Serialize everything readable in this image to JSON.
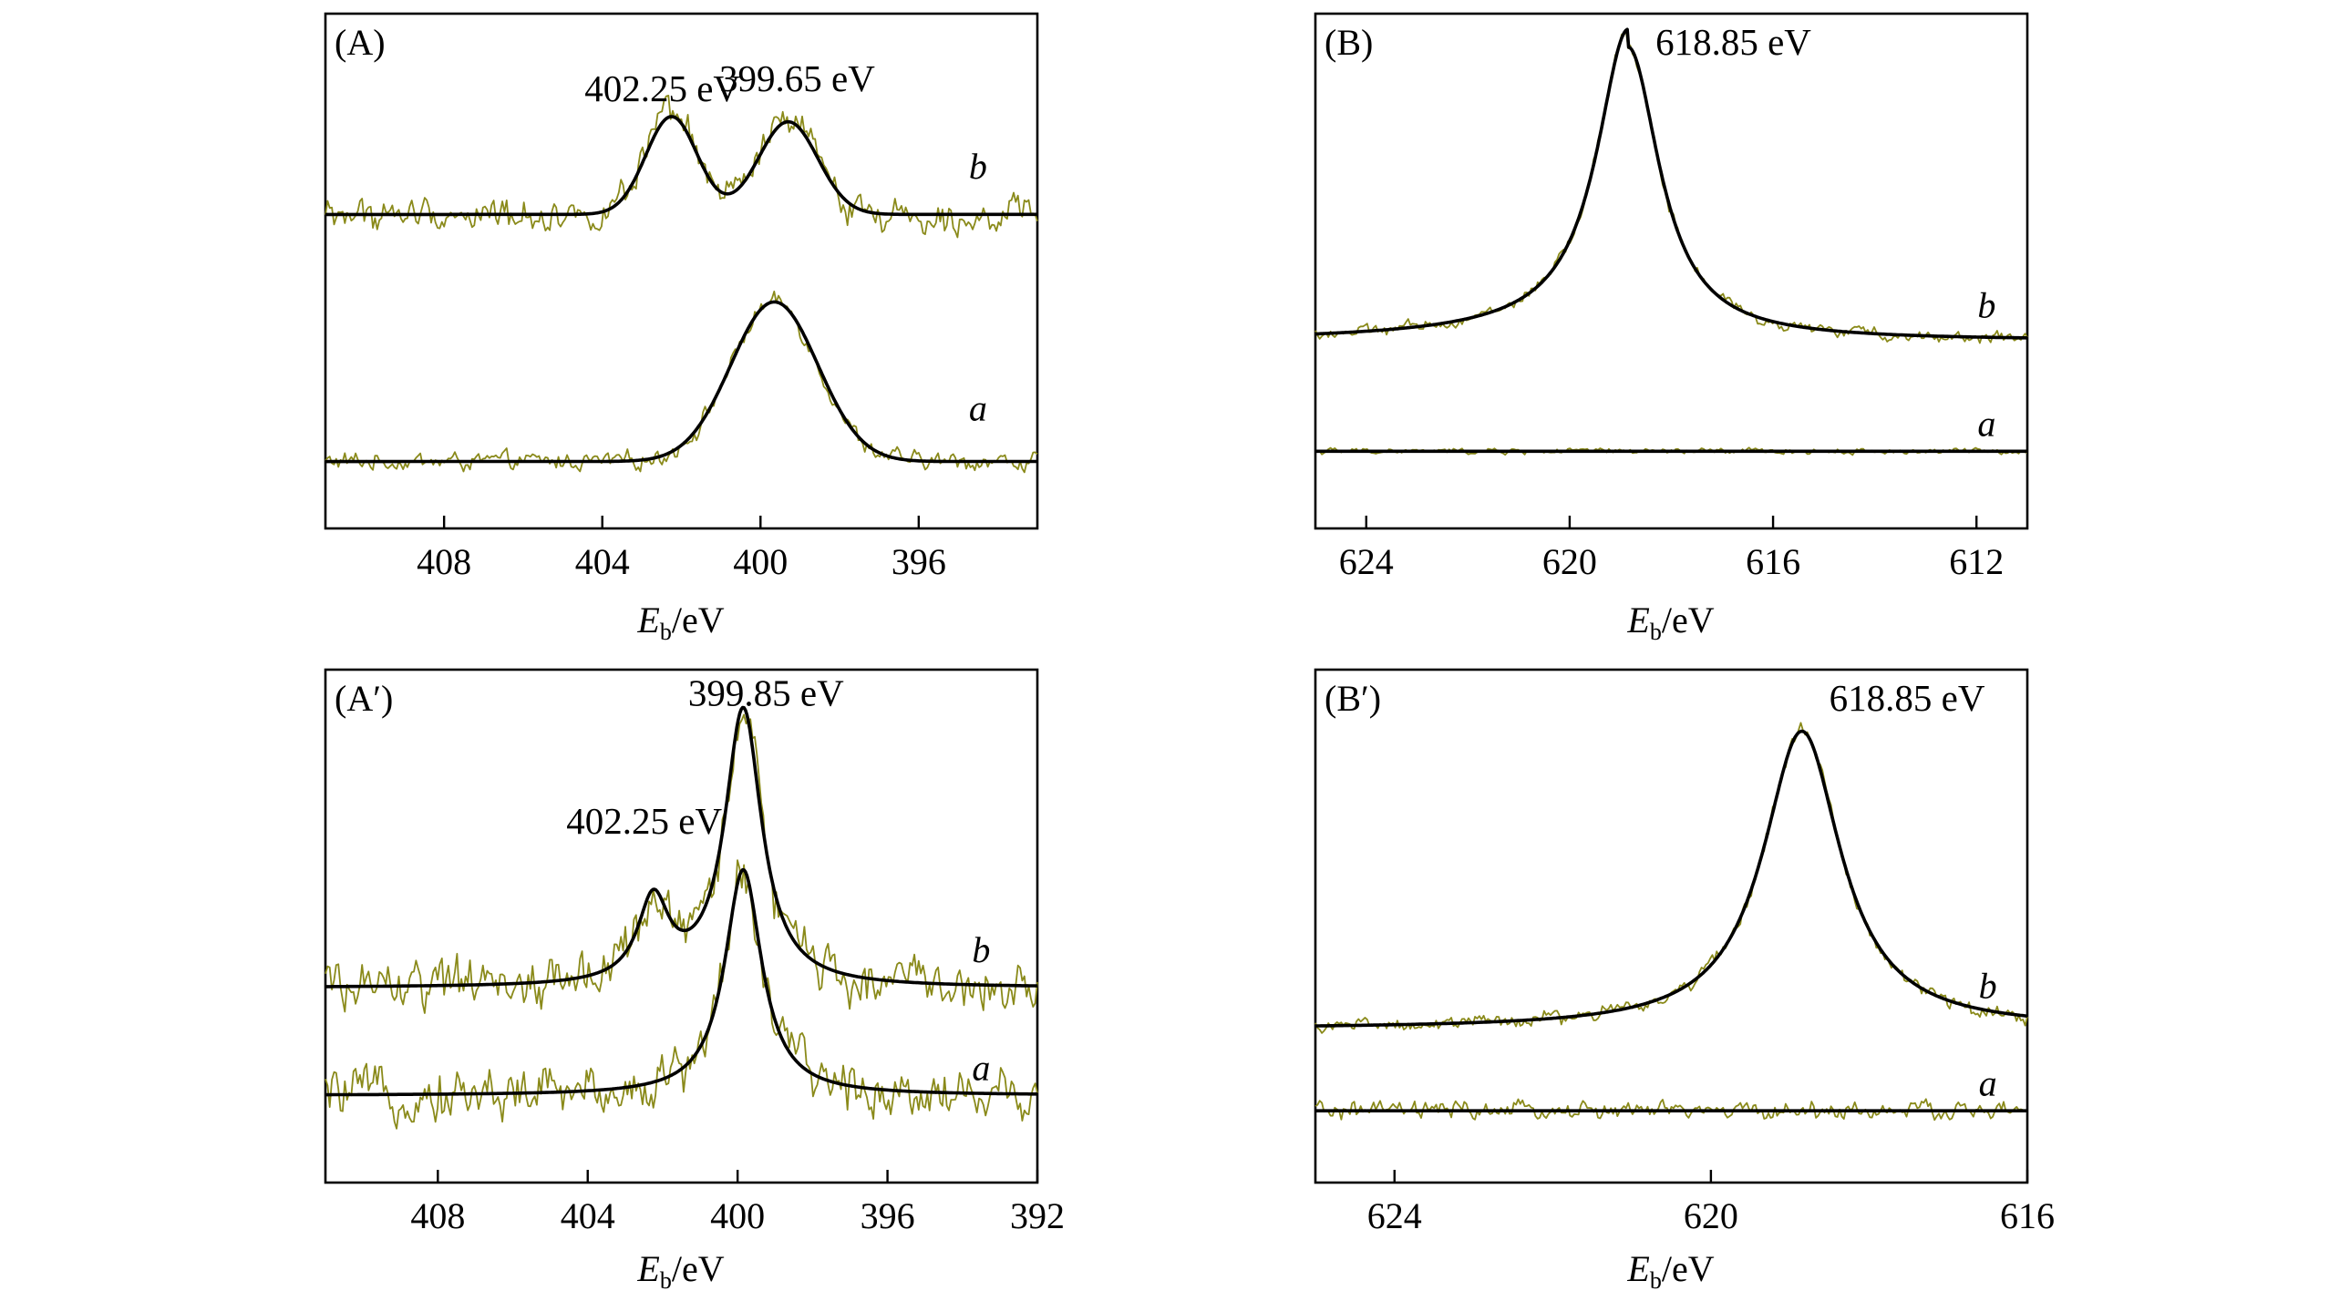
{
  "colors": {
    "raw": "#8a8a1a",
    "fit": "#000000",
    "frame": "#000000"
  },
  "chart_data": [
    {
      "id": "A",
      "type": "line",
      "panel_label": "(A)",
      "xlabel_main": "E",
      "xlabel_sub": "b",
      "xlabel_unit": "/eV",
      "xlim": [
        411,
        393
      ],
      "xticks": [
        408,
        404,
        400,
        396
      ],
      "xtick_labels": [
        "408",
        "404",
        "400",
        "396"
      ],
      "ylim": [
        0,
        100
      ],
      "peak_labels": [
        {
          "text": "402.25 eV",
          "x": 402.25,
          "y": 83
        },
        {
          "text": "399.65 eV",
          "x": 399.65,
          "y": 85
        }
      ],
      "series": [
        {
          "name": "a",
          "label": "a",
          "baseline": 13,
          "noise": 1.2,
          "peaks": [
            {
              "center": 399.65,
              "height": 31,
              "width": 1.1,
              "shape": "gauss"
            }
          ],
          "label_x": 394.5,
          "label_y": 21
        },
        {
          "name": "b",
          "label": "b",
          "baseline": 61,
          "noise": 2.2,
          "peaks": [
            {
              "center": 402.25,
              "height": 19,
              "width": 0.65,
              "shape": "gauss"
            },
            {
              "center": 399.3,
              "height": 18,
              "width": 0.75,
              "shape": "gauss"
            }
          ],
          "label_x": 394.5,
          "label_y": 68
        }
      ]
    },
    {
      "id": "B",
      "type": "line",
      "panel_label": "(B)",
      "xlabel_main": "E",
      "xlabel_sub": "b",
      "xlabel_unit": "/eV",
      "xlim": [
        625,
        611
      ],
      "xticks": [
        624,
        620,
        616,
        612
      ],
      "xtick_labels": [
        "624",
        "620",
        "616",
        "612"
      ],
      "ylim": [
        0,
        100
      ],
      "peak_labels": [
        {
          "text": "618.85 eV",
          "x": 618.85,
          "y": 92
        }
      ],
      "series": [
        {
          "name": "a",
          "label": "a",
          "baseline": 15,
          "noise": 0.4,
          "peaks": [],
          "label_x": 611.8,
          "label_y": 18
        },
        {
          "name": "b",
          "label": "b",
          "baseline": 36.5,
          "noise": 0.8,
          "tail": 3.5,
          "peaks": [
            {
              "center": 618.85,
              "height": 57,
              "width": 0.75,
              "shape": "lorentz"
            }
          ],
          "label_x": 611.8,
          "label_y": 41
        }
      ]
    },
    {
      "id": "A-prime",
      "type": "line",
      "panel_label": "(A′)",
      "xlabel_main": "E",
      "xlabel_sub": "b",
      "xlabel_unit": "/eV",
      "xlim": [
        411,
        392
      ],
      "xticks": [
        408,
        404,
        400,
        396,
        392
      ],
      "xtick_labels": [
        "408",
        "404",
        "400",
        "396",
        "392"
      ],
      "ylim": [
        0,
        100
      ],
      "peak_labels": [
        {
          "text": "402.25 eV",
          "x": 402.25,
          "y": 68
        },
        {
          "text": "399.85 eV",
          "x": 399.85,
          "y": 93
        }
      ],
      "series": [
        {
          "name": "a",
          "label": "a",
          "baseline": 17,
          "noise": 3.5,
          "peaks": [
            {
              "center": 399.85,
              "height": 44,
              "width": 0.6,
              "shape": "lorentz"
            }
          ],
          "label_x": 393.5,
          "label_y": 20
        },
        {
          "name": "b",
          "label": "b",
          "baseline": 38,
          "noise": 3.5,
          "peaks": [
            {
              "center": 402.25,
              "height": 16,
              "width": 0.5,
              "shape": "lorentz"
            },
            {
              "center": 399.85,
              "height": 54,
              "width": 0.6,
              "shape": "lorentz"
            }
          ],
          "label_x": 393.5,
          "label_y": 43
        }
      ]
    },
    {
      "id": "B-prime",
      "type": "line",
      "panel_label": "(B′)",
      "xlabel_main": "E",
      "xlabel_sub": "b",
      "xlabel_unit": "/eV",
      "xlim": [
        625,
        616
      ],
      "xticks": [
        624,
        620,
        616
      ],
      "xtick_labels": [
        "624",
        "620",
        "616"
      ],
      "ylim": [
        0,
        100
      ],
      "peak_labels": [
        {
          "text": "618.85 eV",
          "x": 618.85,
          "y": 92
        }
      ],
      "series": [
        {
          "name": "a",
          "label": "a",
          "baseline": 14,
          "noise": 1.2,
          "peaks": [],
          "label_x": 616.5,
          "label_y": 17
        },
        {
          "name": "b",
          "label": "b",
          "baseline": 30,
          "noise": 1.0,
          "peaks": [
            {
              "center": 618.85,
              "height": 58,
              "width": 0.6,
              "shape": "lorentz"
            }
          ],
          "label_x": 616.5,
          "label_y": 36
        }
      ]
    }
  ]
}
